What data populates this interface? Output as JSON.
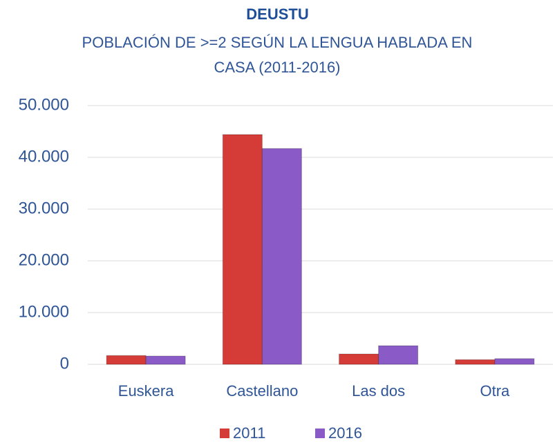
{
  "chart_data": {
    "type": "bar",
    "title": "DEUSTU",
    "subtitle": "POBLACIÓN DE >=2 SEGÚN LA LENGUA HABLADA EN CASA (2011-2016)",
    "categories": [
      "Euskera",
      "Castellano",
      "Las dos",
      "Otra"
    ],
    "series": [
      {
        "name": "2011",
        "color": "#d63c37",
        "values": [
          1700,
          44400,
          2000,
          900
        ]
      },
      {
        "name": "2016",
        "color": "#8a5bc6",
        "values": [
          1600,
          41700,
          3600,
          1100
        ]
      }
    ],
    "ylim": [
      0,
      50000
    ],
    "yticks": [
      0,
      {
        "value": 10000,
        "label": "10.000"
      },
      {
        "value": 20000,
        "label": "20.000"
      },
      {
        "value": 30000,
        "label": "30.000"
      },
      {
        "value": 40000,
        "label": "40.000"
      },
      {
        "value": 50000,
        "label": "50.000"
      }
    ],
    "grid": true,
    "legend": "bottom"
  }
}
